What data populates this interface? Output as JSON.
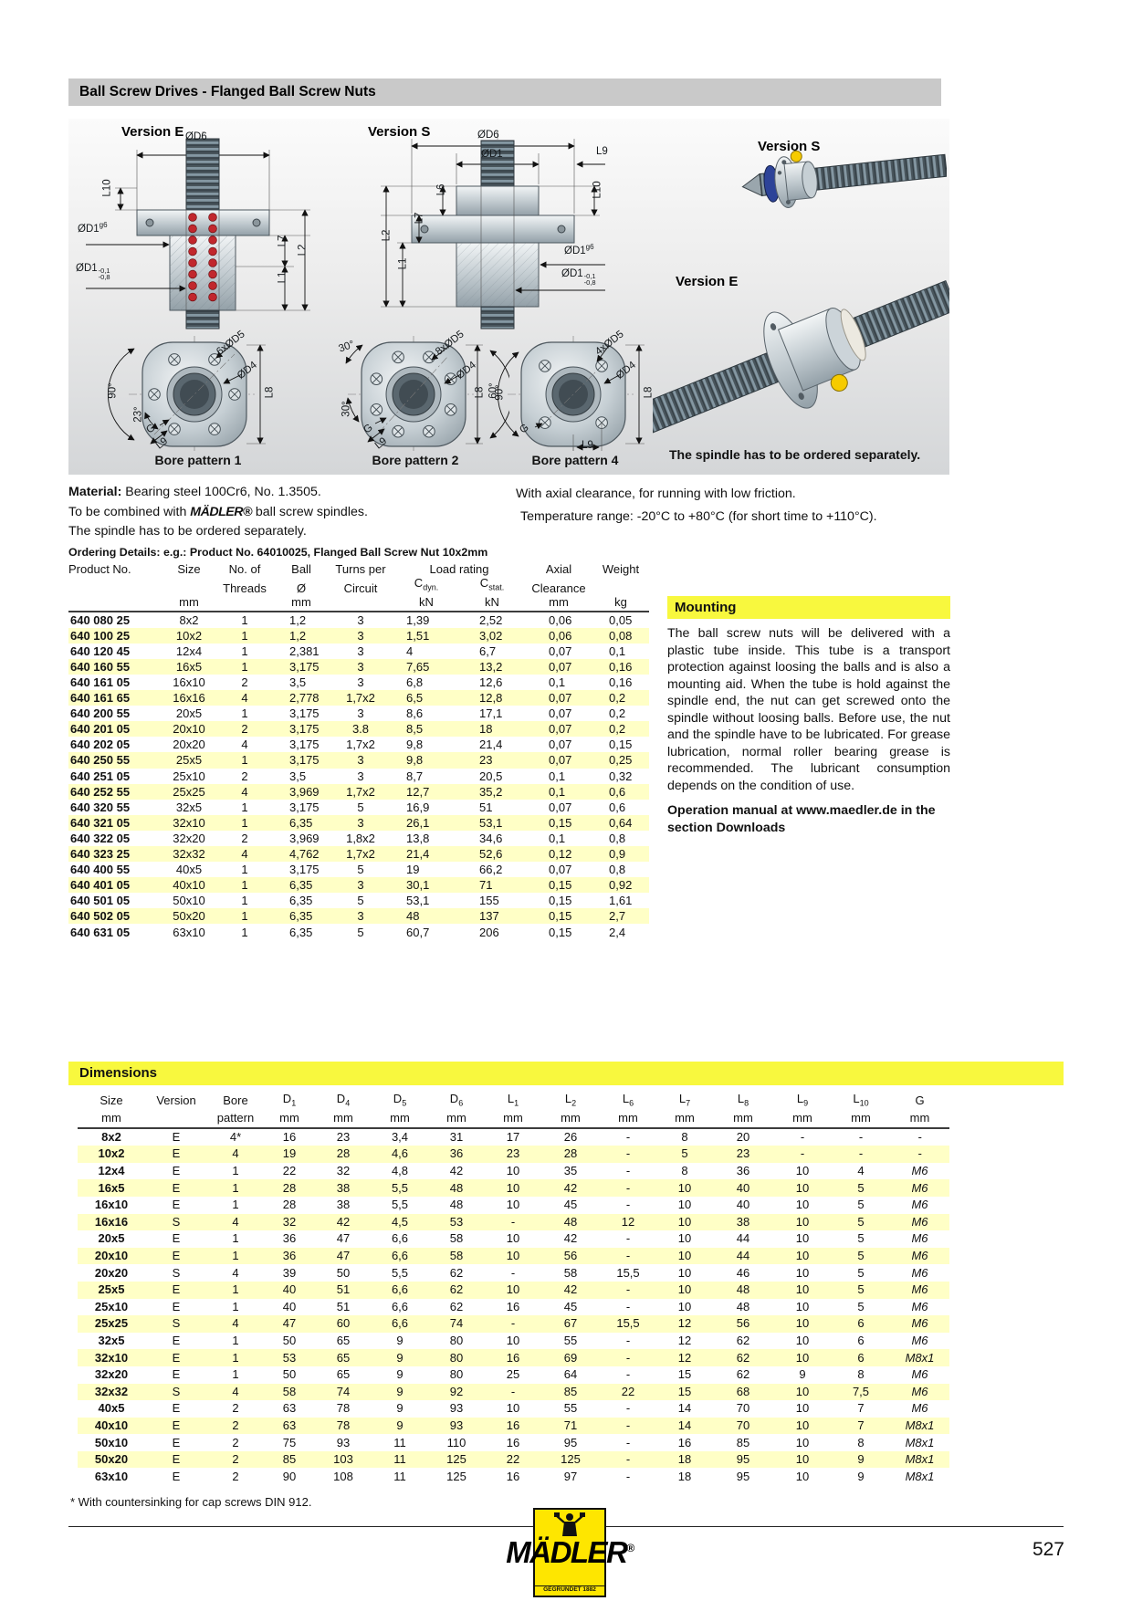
{
  "header": {
    "title": "Ball Screw Drives - Flanged Ball Screw Nuts"
  },
  "diagram": {
    "version_e": "Version E",
    "version_s": "Version S",
    "photo_version_s": "Version S",
    "photo_version_e": "Version E",
    "spindle_note": "The spindle has to be ordered separately.",
    "bore1": "Bore pattern 1",
    "bore2": "Bore pattern 2",
    "bore4": "Bore pattern 4",
    "dims": {
      "od6": "ØD6",
      "od1": "ØD1",
      "od4": "ØD4",
      "od1_base": "ØD1",
      "od1_fit": "g6",
      "od1_tol_top": "-0,1",
      "od1_tol_bot": "-0,8",
      "l1": "L1",
      "l2": "L2",
      "l6": "L6",
      "l7": "L7",
      "l8": "L8",
      "l9": "L9",
      "l10": "L10",
      "holes6": "6xØD5",
      "holes8": "8xØD5",
      "holes4": "4xØD5",
      "a90": "90°",
      "a60": "60°",
      "a30": "30°",
      "a23": "23°",
      "g": "G"
    }
  },
  "intro": {
    "material_label": "Material:",
    "material_text": "Bearing steel 100Cr6, No. 1.3505.",
    "combine_pre": "To be combined with",
    "combine_brand": "MÄDLER®",
    "combine_post": "ball screw spindles.",
    "spindle_note": "The spindle has to be ordered separately.",
    "ordering": "Ordering Details: e.g.: Product No. 64010025, Flanged Ball Screw Nut 10x2mm",
    "axial_note": "With axial clearance, for running with low friction.",
    "temperature_note": "Temperature range: -20°C to +80°C (for short time to +110°C)."
  },
  "product_table": {
    "header": {
      "product_no": "Product No.",
      "size": "Size",
      "size_unit": "mm",
      "threads1": "No. of",
      "threads2": "Threads",
      "ball1": "Ball",
      "ball2": "Ø",
      "ball_unit": "mm",
      "turns1": "Turns per",
      "turns2": "Circuit",
      "load_rating": "Load rating",
      "cdyn_base": "C",
      "cdyn_sub": "dyn.",
      "cdyn_unit": "kN",
      "cstat_base": "C",
      "cstat_sub": "stat.",
      "cstat_unit": "kN",
      "axial1": "Axial",
      "axial2": "Clearance",
      "axial_unit": "mm",
      "weight": "Weight",
      "weight_unit": "kg"
    },
    "rows": [
      [
        "640 080 25",
        "8x2",
        "1",
        "1,2",
        "3",
        "1,39",
        "2,52",
        "0,06",
        "0,05"
      ],
      [
        "640 100 25",
        "10x2",
        "1",
        "1,2",
        "3",
        "1,51",
        "3,02",
        "0,06",
        "0,08"
      ],
      [
        "640 120 45",
        "12x4",
        "1",
        "2,381",
        "3",
        "4",
        "6,7",
        "0,07",
        "0,1"
      ],
      [
        "640 160 55",
        "16x5",
        "1",
        "3,175",
        "3",
        "7,65",
        "13,2",
        "0,07",
        "0,16"
      ],
      [
        "640 161 05",
        "16x10",
        "2",
        "3,5",
        "3",
        "6,8",
        "12,6",
        "0,1",
        "0,16"
      ],
      [
        "640 161 65",
        "16x16",
        "4",
        "2,778",
        "1,7x2",
        "6,5",
        "12,8",
        "0,07",
        "0,2"
      ],
      [
        "640 200 55",
        "20x5",
        "1",
        "3,175",
        "3",
        "8,6",
        "17,1",
        "0,07",
        "0,2"
      ],
      [
        "640 201 05",
        "20x10",
        "2",
        "3,175",
        "3.8",
        "8,5",
        "18",
        "0,07",
        "0,2"
      ],
      [
        "640 202 05",
        "20x20",
        "4",
        "3,175",
        "1,7x2",
        "9,8",
        "21,4",
        "0,07",
        "0,15"
      ],
      [
        "640 250 55",
        "25x5",
        "1",
        "3,175",
        "3",
        "9,8",
        "23",
        "0,07",
        "0,25"
      ],
      [
        "640 251 05",
        "25x10",
        "2",
        "3,5",
        "3",
        "8,7",
        "20,5",
        "0,1",
        "0,32"
      ],
      [
        "640 252 55",
        "25x25",
        "4",
        "3,969",
        "1,7x2",
        "12,7",
        "35,2",
        "0,1",
        "0,6"
      ],
      [
        "640 320 55",
        "32x5",
        "1",
        "3,175",
        "5",
        "16,9",
        "51",
        "0,07",
        "0,6"
      ],
      [
        "640 321 05",
        "32x10",
        "1",
        "6,35",
        "3",
        "26,1",
        "53,1",
        "0,15",
        "0,64"
      ],
      [
        "640 322 05",
        "32x20",
        "2",
        "3,969",
        "1,8x2",
        "13,8",
        "34,6",
        "0,1",
        "0,8"
      ],
      [
        "640 323 25",
        "32x32",
        "4",
        "4,762",
        "1,7x2",
        "21,4",
        "52,6",
        "0,12",
        "0,9"
      ],
      [
        "640 400 55",
        "40x5",
        "1",
        "3,175",
        "5",
        "19",
        "66,2",
        "0,07",
        "0,8"
      ],
      [
        "640 401 05",
        "40x10",
        "1",
        "6,35",
        "3",
        "30,1",
        "71",
        "0,15",
        "0,92"
      ],
      [
        "640 501 05",
        "50x10",
        "1",
        "6,35",
        "5",
        "53,1",
        "155",
        "0,15",
        "1,61"
      ],
      [
        "640 502 05",
        "50x20",
        "1",
        "6,35",
        "3",
        "48",
        "137",
        "0,15",
        "2,7"
      ],
      [
        "640 631 05",
        "63x10",
        "1",
        "6,35",
        "5",
        "60,7",
        "206",
        "0,15",
        "2,4"
      ]
    ]
  },
  "mounting": {
    "title": "Mounting",
    "body": "The ball screw nuts will be delivered with a plastic tube inside. This tube is a transport protection against loosing the balls and is also a mounting aid. When the tube is hold against the spindle end, the nut can get screwed onto the spindle without loosing balls. Before use, the nut and the spindle have to be lubricated. For grease lubrication, normal roller bearing grease is recommended. The lubricant consumption depends on the condition of use.",
    "manual": "Operation manual at www.maedler.de in the section Downloads"
  },
  "dimensions": {
    "title": "Dimensions",
    "header": [
      {
        "t": "Size",
        "s": "",
        "u": "mm",
        "b": true
      },
      {
        "t": "Version",
        "s": "",
        "u": ""
      },
      {
        "t": "Bore",
        "s": "",
        "u": "pattern"
      },
      {
        "t": "D",
        "s": "1",
        "u": "mm"
      },
      {
        "t": "D",
        "s": "4",
        "u": "mm"
      },
      {
        "t": "D",
        "s": "5",
        "u": "mm"
      },
      {
        "t": "D",
        "s": "6",
        "u": "mm"
      },
      {
        "t": "L",
        "s": "1",
        "u": "mm"
      },
      {
        "t": "L",
        "s": "2",
        "u": "mm"
      },
      {
        "t": "L",
        "s": "6",
        "u": "mm"
      },
      {
        "t": "L",
        "s": "7",
        "u": "mm"
      },
      {
        "t": "L",
        "s": "8",
        "u": "mm"
      },
      {
        "t": "L",
        "s": "9",
        "u": "mm"
      },
      {
        "t": "L",
        "s": "10",
        "u": "mm"
      },
      {
        "t": "G",
        "s": "",
        "u": "mm"
      }
    ],
    "rows": [
      [
        "8x2",
        "E",
        "4*",
        "16",
        "23",
        "3,4",
        "31",
        "17",
        "26",
        "-",
        "8",
        "20",
        "-",
        "-",
        "-"
      ],
      [
        "10x2",
        "E",
        "4",
        "19",
        "28",
        "4,6",
        "36",
        "23",
        "28",
        "-",
        "5",
        "23",
        "-",
        "-",
        "-"
      ],
      [
        "12x4",
        "E",
        "1",
        "22",
        "32",
        "4,8",
        "42",
        "10",
        "35",
        "-",
        "8",
        "36",
        "10",
        "4",
        "M6"
      ],
      [
        "16x5",
        "E",
        "1",
        "28",
        "38",
        "5,5",
        "48",
        "10",
        "42",
        "-",
        "10",
        "40",
        "10",
        "5",
        "M6"
      ],
      [
        "16x10",
        "E",
        "1",
        "28",
        "38",
        "5,5",
        "48",
        "10",
        "45",
        "-",
        "10",
        "40",
        "10",
        "5",
        "M6"
      ],
      [
        "16x16",
        "S",
        "4",
        "32",
        "42",
        "4,5",
        "53",
        "-",
        "48",
        "12",
        "10",
        "38",
        "10",
        "5",
        "M6"
      ],
      [
        "20x5",
        "E",
        "1",
        "36",
        "47",
        "6,6",
        "58",
        "10",
        "42",
        "-",
        "10",
        "44",
        "10",
        "5",
        "M6"
      ],
      [
        "20x10",
        "E",
        "1",
        "36",
        "47",
        "6,6",
        "58",
        "10",
        "56",
        "-",
        "10",
        "44",
        "10",
        "5",
        "M6"
      ],
      [
        "20x20",
        "S",
        "4",
        "39",
        "50",
        "5,5",
        "62",
        "-",
        "58",
        "15,5",
        "10",
        "46",
        "10",
        "5",
        "M6"
      ],
      [
        "25x5",
        "E",
        "1",
        "40",
        "51",
        "6,6",
        "62",
        "10",
        "42",
        "-",
        "10",
        "48",
        "10",
        "5",
        "M6"
      ],
      [
        "25x10",
        "E",
        "1",
        "40",
        "51",
        "6,6",
        "62",
        "16",
        "45",
        "-",
        "10",
        "48",
        "10",
        "5",
        "M6"
      ],
      [
        "25x25",
        "S",
        "4",
        "47",
        "60",
        "6,6",
        "74",
        "-",
        "67",
        "15,5",
        "12",
        "56",
        "10",
        "6",
        "M6"
      ],
      [
        "32x5",
        "E",
        "1",
        "50",
        "65",
        "9",
        "80",
        "10",
        "55",
        "-",
        "12",
        "62",
        "10",
        "6",
        "M6"
      ],
      [
        "32x10",
        "E",
        "1",
        "53",
        "65",
        "9",
        "80",
        "16",
        "69",
        "-",
        "12",
        "62",
        "10",
        "6",
        "M8x1"
      ],
      [
        "32x20",
        "E",
        "1",
        "50",
        "65",
        "9",
        "80",
        "25",
        "64",
        "-",
        "15",
        "62",
        "9",
        "8",
        "M6"
      ],
      [
        "32x32",
        "S",
        "4",
        "58",
        "74",
        "9",
        "92",
        "-",
        "85",
        "22",
        "15",
        "68",
        "10",
        "7,5",
        "M6"
      ],
      [
        "40x5",
        "E",
        "2",
        "63",
        "78",
        "9",
        "93",
        "10",
        "55",
        "-",
        "14",
        "70",
        "10",
        "7",
        "M6"
      ],
      [
        "40x10",
        "E",
        "2",
        "63",
        "78",
        "9",
        "93",
        "16",
        "71",
        "-",
        "14",
        "70",
        "10",
        "7",
        "M8x1"
      ],
      [
        "50x10",
        "E",
        "2",
        "75",
        "93",
        "11",
        "110",
        "16",
        "95",
        "-",
        "16",
        "85",
        "10",
        "8",
        "M8x1"
      ],
      [
        "50x20",
        "E",
        "2",
        "85",
        "103",
        "11",
        "125",
        "22",
        "125",
        "-",
        "18",
        "95",
        "10",
        "9",
        "M8x1"
      ],
      [
        "63x10",
        "E",
        "2",
        "90",
        "108",
        "11",
        "125",
        "16",
        "97",
        "-",
        "18",
        "95",
        "10",
        "9",
        "M8x1"
      ]
    ],
    "footnote": "* With countersinking for cap screws DIN 912."
  },
  "footer": {
    "brand": "MÄDLER",
    "reg": "®",
    "founded": "GEGRÜNDET 1882",
    "page_number": "527"
  }
}
